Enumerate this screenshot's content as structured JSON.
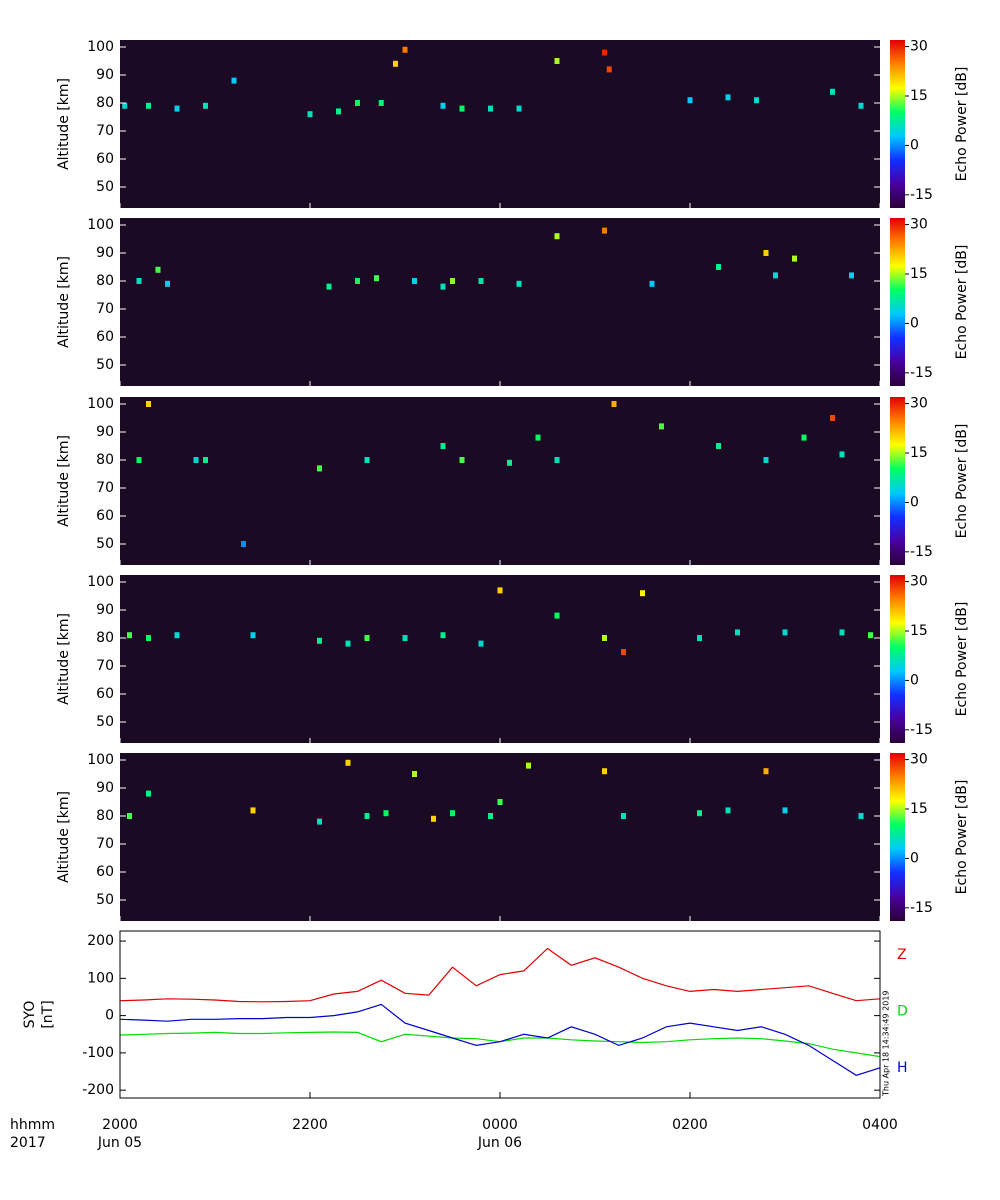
{
  "colormap": [
    "#2a0038",
    "#4a00a0",
    "#1030ff",
    "#00c8ff",
    "#00ff60",
    "#ffff00",
    "#ff8000",
    "#e00000"
  ],
  "chart_data": [
    {
      "type": "heatmap",
      "ylabel": "Altitude [km]",
      "xlim": [
        0,
        8
      ],
      "ylim": [
        42.5,
        102.5
      ],
      "yticks": [
        50,
        60,
        70,
        80,
        90,
        100
      ],
      "x": [
        0.05,
        0.3,
        0.6,
        0.9,
        1.2,
        2.0,
        2.3,
        2.5,
        2.75,
        2.9,
        3.0,
        3.4,
        3.6,
        3.9,
        4.2,
        4.6,
        5.1,
        5.15,
        6.0,
        6.4,
        6.7,
        7.5,
        7.8
      ],
      "y": [
        79,
        79,
        78,
        79,
        88,
        76,
        77,
        80,
        80,
        94,
        99,
        79,
        78,
        78,
        78,
        95,
        98,
        92,
        81,
        82,
        81,
        84,
        79
      ],
      "z": [
        5,
        8,
        4,
        6,
        3,
        6,
        8,
        10,
        9,
        20,
        25,
        4,
        10,
        6,
        5,
        15,
        30,
        28,
        3,
        4,
        5,
        6,
        5
      ],
      "colorbar": {
        "label": "Echo Power [dB]",
        "lim": [
          -19,
          32
        ],
        "ticks": [
          -15,
          0,
          15,
          30
        ]
      }
    },
    {
      "type": "heatmap",
      "ylabel": "Altitude [km]",
      "xlim": [
        0,
        8
      ],
      "ylim": [
        42.5,
        102.5
      ],
      "yticks": [
        50,
        60,
        70,
        80,
        90,
        100
      ],
      "x": [
        0.2,
        0.4,
        0.5,
        2.2,
        2.5,
        2.7,
        3.1,
        3.4,
        3.5,
        3.8,
        4.2,
        4.6,
        5.1,
        5.6,
        6.3,
        6.8,
        6.9,
        7.1,
        7.7
      ],
      "y": [
        80,
        84,
        79,
        78,
        80,
        81,
        80,
        78,
        80,
        80,
        79,
        96,
        98,
        79,
        85,
        90,
        82,
        88,
        82
      ],
      "z": [
        6,
        12,
        4,
        8,
        10,
        12,
        4,
        6,
        14,
        7,
        6,
        15,
        25,
        3,
        8,
        20,
        5,
        15,
        4
      ],
      "colorbar": {
        "label": "Echo Power [dB]",
        "lim": [
          -19,
          32
        ],
        "ticks": [
          -15,
          0,
          15,
          30
        ]
      }
    },
    {
      "type": "heatmap",
      "ylabel": "Altitude [km]",
      "xlim": [
        0,
        8
      ],
      "ylim": [
        42.5,
        102.5
      ],
      "yticks": [
        50,
        60,
        70,
        80,
        90,
        100
      ],
      "x": [
        0.2,
        0.3,
        0.8,
        0.9,
        1.3,
        2.1,
        2.6,
        3.4,
        3.6,
        4.1,
        4.4,
        4.6,
        5.2,
        5.7,
        6.3,
        6.8,
        7.2,
        7.5,
        7.6
      ],
      "y": [
        80,
        100,
        80,
        80,
        50,
        77,
        80,
        85,
        80,
        79,
        88,
        80,
        100,
        92,
        85,
        80,
        88,
        95,
        82
      ],
      "z": [
        10,
        20,
        5,
        8,
        0,
        12,
        6,
        8,
        12,
        8,
        10,
        6,
        22,
        12,
        8,
        5,
        10,
        28,
        6
      ],
      "colorbar": {
        "label": "Echo Power [dB]",
        "lim": [
          -19,
          32
        ],
        "ticks": [
          -15,
          0,
          15,
          30
        ]
      }
    },
    {
      "type": "heatmap",
      "ylabel": "Altitude [km]",
      "xlim": [
        0,
        8
      ],
      "ylim": [
        42.5,
        102.5
      ],
      "yticks": [
        50,
        60,
        70,
        80,
        90,
        100
      ],
      "x": [
        0.1,
        0.3,
        0.6,
        1.4,
        2.1,
        2.4,
        2.6,
        3.0,
        3.4,
        3.8,
        4.0,
        4.6,
        5.1,
        5.3,
        5.5,
        6.1,
        6.5,
        7.0,
        7.6,
        7.9
      ],
      "y": [
        81,
        80,
        81,
        81,
        79,
        78,
        80,
        80,
        81,
        78,
        97,
        88,
        80,
        75,
        96,
        80,
        82,
        82,
        82,
        81
      ],
      "z": [
        12,
        10,
        5,
        4,
        8,
        6,
        12,
        6,
        8,
        5,
        20,
        10,
        15,
        28,
        18,
        6,
        6,
        5,
        6,
        12
      ],
      "colorbar": {
        "label": "Echo Power [dB]",
        "lim": [
          -19,
          32
        ],
        "ticks": [
          -15,
          0,
          15,
          30
        ]
      }
    },
    {
      "type": "heatmap",
      "ylabel": "Altitude [km]",
      "xlim": [
        0,
        8
      ],
      "ylim": [
        42.5,
        102.5
      ],
      "yticks": [
        50,
        60,
        70,
        80,
        90,
        100
      ],
      "x": [
        0.1,
        0.3,
        1.4,
        2.1,
        2.4,
        2.6,
        2.8,
        3.1,
        3.3,
        3.5,
        3.9,
        4.0,
        4.3,
        5.1,
        5.3,
        6.1,
        6.4,
        6.8,
        7.0,
        7.8
      ],
      "y": [
        80,
        88,
        82,
        78,
        99,
        80,
        81,
        95,
        79,
        81,
        80,
        85,
        98,
        96,
        80,
        81,
        82,
        96,
        82,
        80
      ],
      "z": [
        12,
        8,
        20,
        6,
        20,
        8,
        10,
        15,
        20,
        10,
        8,
        12,
        15,
        20,
        6,
        8,
        6,
        22,
        4,
        5
      ],
      "colorbar": {
        "label": "Echo Power [dB]",
        "lim": [
          -19,
          32
        ],
        "ticks": [
          -15,
          0,
          15,
          30
        ]
      }
    },
    {
      "type": "line",
      "ylabel": [
        "SYO",
        "[nT]"
      ],
      "xlim": [
        0,
        8
      ],
      "ylim": [
        -221,
        227
      ],
      "yticks": [
        -200,
        -100,
        0,
        100,
        200
      ],
      "xticks": [
        {
          "value": 0,
          "label": "2000"
        },
        {
          "value": 2,
          "label": "2200"
        },
        {
          "value": 4,
          "label": "0000"
        },
        {
          "value": 6,
          "label": "0200"
        },
        {
          "value": 8,
          "label": "0400"
        }
      ],
      "xdates": [
        {
          "value": 0,
          "label": "Jun 05"
        },
        {
          "value": 4,
          "label": "Jun 06"
        }
      ],
      "xlabel": "hhmm",
      "year": "2017",
      "annotation": "Thu Apr 18 14:34:49 2019",
      "x": [
        0,
        0.25,
        0.5,
        0.75,
        1,
        1.25,
        1.5,
        1.75,
        2,
        2.25,
        2.5,
        2.75,
        3,
        3.25,
        3.5,
        3.75,
        4,
        4.25,
        4.5,
        4.75,
        5,
        5.25,
        5.5,
        5.75,
        6,
        6.25,
        6.5,
        6.75,
        7,
        7.25,
        7.5,
        7.75,
        8
      ],
      "series": [
        {
          "name": "Z",
          "color": "#e00000",
          "values": [
            40,
            42,
            45,
            44,
            42,
            38,
            37,
            38,
            40,
            58,
            65,
            95,
            60,
            55,
            130,
            80,
            110,
            120,
            180,
            135,
            155,
            130,
            100,
            80,
            65,
            70,
            65,
            70,
            75,
            80,
            60,
            40,
            45
          ]
        },
        {
          "name": "D",
          "color": "#00dd00",
          "values": [
            -52,
            -50,
            -48,
            -47,
            -45,
            -48,
            -48,
            -46,
            -45,
            -44,
            -45,
            -70,
            -50,
            -55,
            -60,
            -62,
            -70,
            -60,
            -60,
            -65,
            -68,
            -70,
            -72,
            -70,
            -65,
            -62,
            -60,
            -62,
            -68,
            -75,
            -90,
            -100,
            -110
          ]
        },
        {
          "name": "H",
          "color": "#0000cc",
          "values": [
            -10,
            -12,
            -15,
            -10,
            -10,
            -8,
            -8,
            -5,
            -5,
            0,
            10,
            30,
            -20,
            -40,
            -60,
            -80,
            -70,
            -50,
            -60,
            -30,
            -50,
            -80,
            -60,
            -30,
            -20,
            -30,
            -40,
            -30,
            -50,
            -80,
            -120,
            -160,
            -140
          ]
        }
      ]
    }
  ]
}
